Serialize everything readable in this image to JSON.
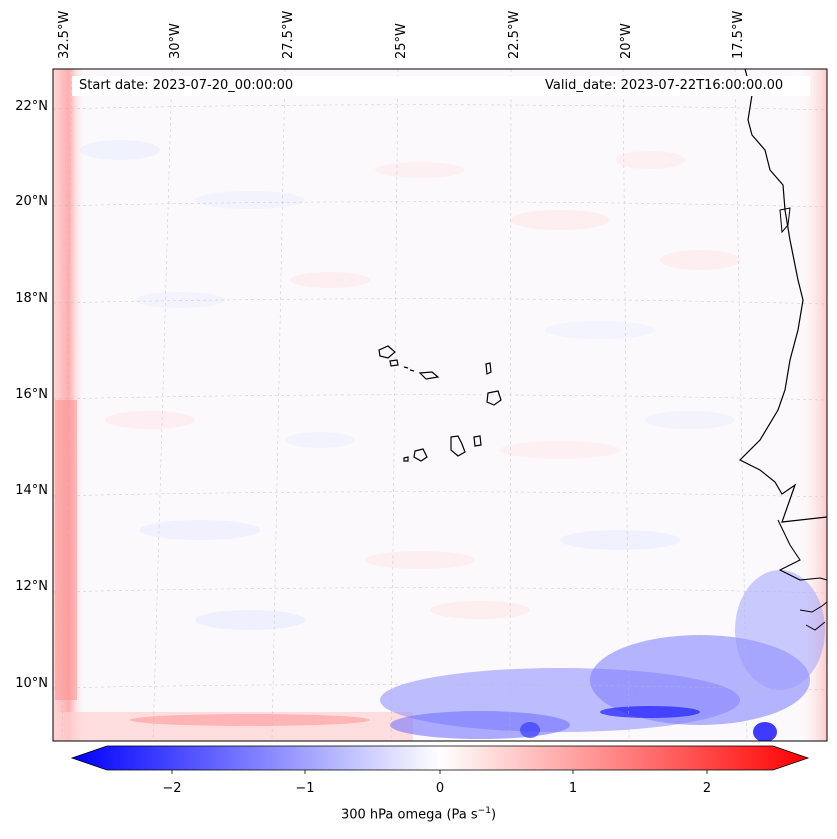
{
  "map": {
    "start_date": "Start date: 2023-07-20_00:00:00",
    "valid_date": "Valid_date: 2023-07-22T16:00:00.00",
    "lon_labels": [
      "32.5°W",
      "30°W",
      "27.5°W",
      "25°W",
      "22.5°W",
      "20°W",
      "17.5°W"
    ],
    "lat_labels": [
      "22°N",
      "20°N",
      "18°N",
      "16°N",
      "14°N",
      "12°N",
      "10°N"
    ],
    "colorbar": {
      "ticks": [
        "−2",
        "−1",
        "0",
        "1",
        "2"
      ],
      "label": "300 hPa omega (Pa s",
      "label_exp": "−1",
      "label_close": ")",
      "min_color": "#0000ff",
      "mid_color": "#ffffff",
      "max_color": "#ff0000"
    },
    "islands": [
      "Santo Antão",
      "São Vicente",
      "Santa Luzia",
      "São Nicolau",
      "Sal",
      "Boa Vista",
      "Maio",
      "Santiago",
      "Fogo",
      "Brava"
    ]
  }
}
